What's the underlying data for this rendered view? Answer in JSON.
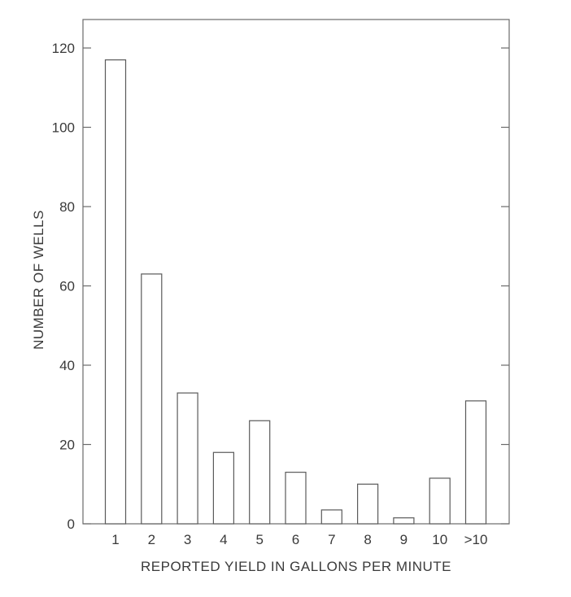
{
  "chart_data": {
    "type": "bar",
    "title": "",
    "xlabel": "REPORTED YIELD IN GALLONS PER MINUTE",
    "ylabel": "NUMBER OF WELLS",
    "categories": [
      "1",
      "2",
      "3",
      "4",
      "5",
      "6",
      "7",
      "8",
      "9",
      "10",
      ">10"
    ],
    "values": [
      117,
      63,
      33,
      18,
      26,
      13,
      3.5,
      10,
      1.5,
      11.5,
      31
    ],
    "ylim": [
      0,
      120
    ],
    "yticks": [
      0,
      20,
      40,
      60,
      80,
      100,
      120
    ],
    "ytick_labels": [
      "0",
      "20",
      "40",
      "60",
      "80",
      "100",
      "120"
    ],
    "grid": false,
    "legend": "none",
    "colors": {
      "bar_fill": "#ffffff",
      "bar_stroke": "#5a5a5a",
      "axis": "#6a6a6a",
      "text": "#3a3a3a"
    }
  }
}
